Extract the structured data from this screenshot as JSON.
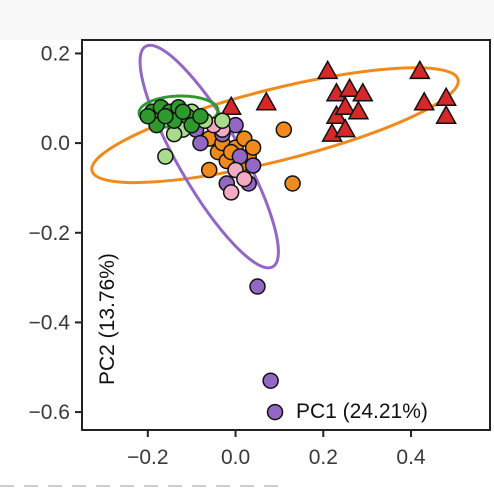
{
  "chart_data": {
    "type": "scatter",
    "xlabel": "PC1 (24.21%)",
    "ylabel": "PC2 (13.76%)",
    "xlim": [
      -0.35,
      0.58
    ],
    "ylim": [
      -0.64,
      0.23
    ],
    "x_ticks": [
      -0.2,
      0.0,
      0.2,
      0.4
    ],
    "x_tick_labels": [
      "−0.2",
      "0.0",
      "0.2",
      "0.4"
    ],
    "y_ticks": [
      0.2,
      0.0,
      -0.2,
      -0.4,
      -0.6
    ],
    "y_tick_labels": [
      "0.2",
      "0.0",
      "−0.2",
      "−0.4",
      "−0.6"
    ],
    "grid": false,
    "colors": {
      "green": "#2e9a2e",
      "light_green": "#a8dc8c",
      "pink": "#f4a9c4",
      "orange": "#f08a1c",
      "purple": "#9268c4",
      "red": "#d62828",
      "ellipse_orange": "#f08a1c",
      "ellipse_purple": "#9268c4",
      "ellipse_green": "#2e9a2e"
    },
    "series": [
      {
        "color_key": "red",
        "marker": "triangle",
        "points": [
          [
            -0.01,
            0.08
          ],
          [
            0.07,
            0.09
          ],
          [
            0.21,
            0.16
          ],
          [
            0.23,
            0.11
          ],
          [
            0.26,
            0.12
          ],
          [
            0.29,
            0.11
          ],
          [
            0.23,
            0.06
          ],
          [
            0.25,
            0.08
          ],
          [
            0.28,
            0.07
          ],
          [
            0.22,
            0.02
          ],
          [
            0.25,
            0.03
          ],
          [
            0.42,
            0.16
          ],
          [
            0.48,
            0.1
          ],
          [
            0.43,
            0.09
          ],
          [
            0.48,
            0.06
          ]
        ]
      },
      {
        "color_key": "orange",
        "marker": "circle",
        "points": [
          [
            0.11,
            0.03
          ],
          [
            0.13,
            -0.09
          ],
          [
            -0.06,
            0.01
          ],
          [
            -0.04,
            -0.02
          ],
          [
            -0.03,
            0.0
          ],
          [
            -0.02,
            -0.04
          ],
          [
            0.0,
            -0.01
          ],
          [
            0.02,
            0.01
          ],
          [
            0.03,
            -0.03
          ],
          [
            -0.06,
            -0.06
          ],
          [
            0.01,
            -0.05
          ],
          [
            -0.01,
            -0.02
          ],
          [
            0.04,
            -0.01
          ]
        ]
      },
      {
        "color_key": "purple",
        "marker": "circle",
        "points": [
          [
            0.05,
            -0.32
          ],
          [
            0.08,
            -0.53
          ],
          [
            0.09,
            -0.6
          ],
          [
            -0.09,
            0.03
          ],
          [
            -0.03,
            0.02
          ],
          [
            0.01,
            -0.03
          ],
          [
            0.04,
            -0.05
          ],
          [
            -0.02,
            -0.09
          ],
          [
            0.03,
            -0.09
          ],
          [
            -0.08,
            0.0
          ],
          [
            0.0,
            0.04
          ]
        ]
      },
      {
        "color_key": "pink",
        "marker": "circle",
        "points": [
          [
            -0.03,
            0.03
          ],
          [
            0.0,
            -0.06
          ],
          [
            -0.01,
            -0.11
          ],
          [
            0.02,
            -0.08
          ],
          [
            -0.05,
            0.04
          ]
        ]
      },
      {
        "color_key": "light_green",
        "marker": "circle",
        "points": [
          [
            -0.17,
            0.06
          ],
          [
            -0.12,
            0.03
          ],
          [
            -0.07,
            0.05
          ],
          [
            -0.16,
            -0.03
          ],
          [
            -0.1,
            0.07
          ],
          [
            -0.03,
            0.05
          ],
          [
            -0.14,
            0.02
          ]
        ]
      },
      {
        "color_key": "green",
        "marker": "circle",
        "points": [
          [
            -0.19,
            0.07
          ],
          [
            -0.17,
            0.08
          ],
          [
            -0.15,
            0.07
          ],
          [
            -0.13,
            0.08
          ],
          [
            -0.11,
            0.06
          ],
          [
            -0.18,
            0.04
          ],
          [
            -0.14,
            0.05
          ],
          [
            -0.1,
            0.04
          ],
          [
            -0.16,
            0.06
          ],
          [
            -0.12,
            0.07
          ],
          [
            -0.08,
            0.06
          ],
          [
            -0.2,
            0.06
          ]
        ]
      }
    ],
    "ellipses": [
      {
        "color_key": "ellipse_orange",
        "center": [
          0.09,
          0.04
        ],
        "rx": 0.43,
        "ry": 0.08,
        "angle_deg": 14
      },
      {
        "color_key": "ellipse_purple",
        "center": [
          -0.06,
          -0.03
        ],
        "rx": 0.29,
        "ry": 0.07,
        "angle_deg": -60
      },
      {
        "color_key": "ellipse_green",
        "center": [
          -0.13,
          0.07
        ],
        "rx": 0.09,
        "ry": 0.035,
        "angle_deg": 2
      }
    ]
  }
}
